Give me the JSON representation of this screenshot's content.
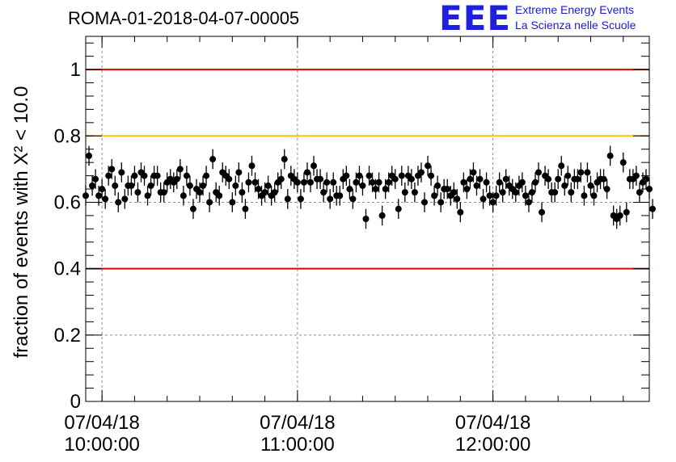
{
  "header": {
    "title": "ROMA-01-2018-04-07-00005",
    "logo_mark": "EEE",
    "logo_line1": "Extreme Energy Events",
    "logo_line2": "La Scienza nelle Scuole"
  },
  "chart_data": {
    "type": "scatter",
    "ylabel": "fraction of events with X² < 10.0",
    "ylim": [
      0,
      1.1
    ],
    "xlim": [
      "2018-04-07T09:55",
      "2018-04-07T12:48"
    ],
    "y_ticks": [
      0,
      0.2,
      0.4,
      0.6,
      0.8,
      1
    ],
    "y_tick_labels": [
      "0",
      "0.2",
      "0.4",
      "0.6",
      "0.8",
      "1"
    ],
    "x_ticks": [
      "2018-04-07T10:00",
      "2018-04-07T11:00",
      "2018-04-07T12:00"
    ],
    "x_tick_labels": [
      {
        "date": "07/04/18",
        "time": "10:00:00"
      },
      {
        "date": "07/04/18",
        "time": "11:00:00"
      },
      {
        "date": "07/04/18",
        "time": "12:00:00"
      }
    ],
    "grid": true,
    "reference_lines": [
      {
        "y": 1.0,
        "color": "#e00000"
      },
      {
        "y": 0.8,
        "color": "#ffc000"
      },
      {
        "y": 0.4,
        "color": "#e00000"
      }
    ],
    "error": 0.03,
    "x_start": "2018-04-07T09:55",
    "x_step_minutes": 1,
    "values": [
      0.62,
      0.74,
      0.65,
      0.67,
      0.62,
      0.64,
      0.61,
      0.68,
      0.7,
      0.65,
      0.6,
      0.69,
      0.61,
      0.65,
      0.65,
      0.68,
      0.63,
      0.69,
      0.68,
      0.62,
      0.65,
      0.68,
      0.68,
      0.63,
      0.63,
      0.66,
      0.67,
      0.66,
      0.67,
      0.7,
      0.62,
      0.68,
      0.65,
      0.58,
      0.64,
      0.63,
      0.65,
      0.68,
      0.6,
      0.73,
      0.63,
      0.62,
      0.69,
      0.68,
      0.67,
      0.6,
      0.65,
      0.69,
      0.63,
      0.58,
      0.66,
      0.71,
      0.66,
      0.64,
      0.62,
      0.63,
      0.65,
      0.62,
      0.63,
      0.66,
      0.67,
      0.73,
      0.61,
      0.68,
      0.67,
      0.66,
      0.61,
      0.66,
      0.69,
      0.66,
      0.71,
      0.67,
      0.67,
      0.63,
      0.66,
      0.61,
      0.66,
      0.62,
      0.62,
      0.67,
      0.68,
      0.64,
      0.61,
      0.66,
      0.68,
      0.65,
      0.55,
      0.68,
      0.66,
      0.64,
      0.66,
      0.56,
      0.64,
      0.66,
      0.68,
      0.67,
      0.58,
      0.68,
      0.63,
      0.68,
      0.67,
      0.63,
      0.68,
      0.69,
      0.6,
      0.71,
      0.68,
      0.62,
      0.65,
      0.6,
      0.64,
      0.64,
      0.62,
      0.63,
      0.61,
      0.57,
      0.66,
      0.64,
      0.67,
      0.69,
      0.65,
      0.67,
      0.61,
      0.66,
      0.62,
      0.6,
      0.62,
      0.66,
      0.63,
      0.67,
      0.65,
      0.64,
      0.63,
      0.65,
      0.66,
      0.62,
      0.6,
      0.63,
      0.66,
      0.69,
      0.57,
      0.68,
      0.67,
      0.63,
      0.63,
      0.67,
      0.71,
      0.65,
      0.68,
      0.63,
      0.67,
      0.67,
      0.69,
      0.62,
      0.69,
      0.65,
      0.62,
      0.66,
      0.67,
      0.67,
      0.64,
      0.74,
      0.56,
      0.55,
      0.56,
      0.72,
      0.57,
      0.67,
      0.67,
      0.68,
      0.63,
      0.66,
      0.67,
      0.64,
      0.58
    ]
  }
}
